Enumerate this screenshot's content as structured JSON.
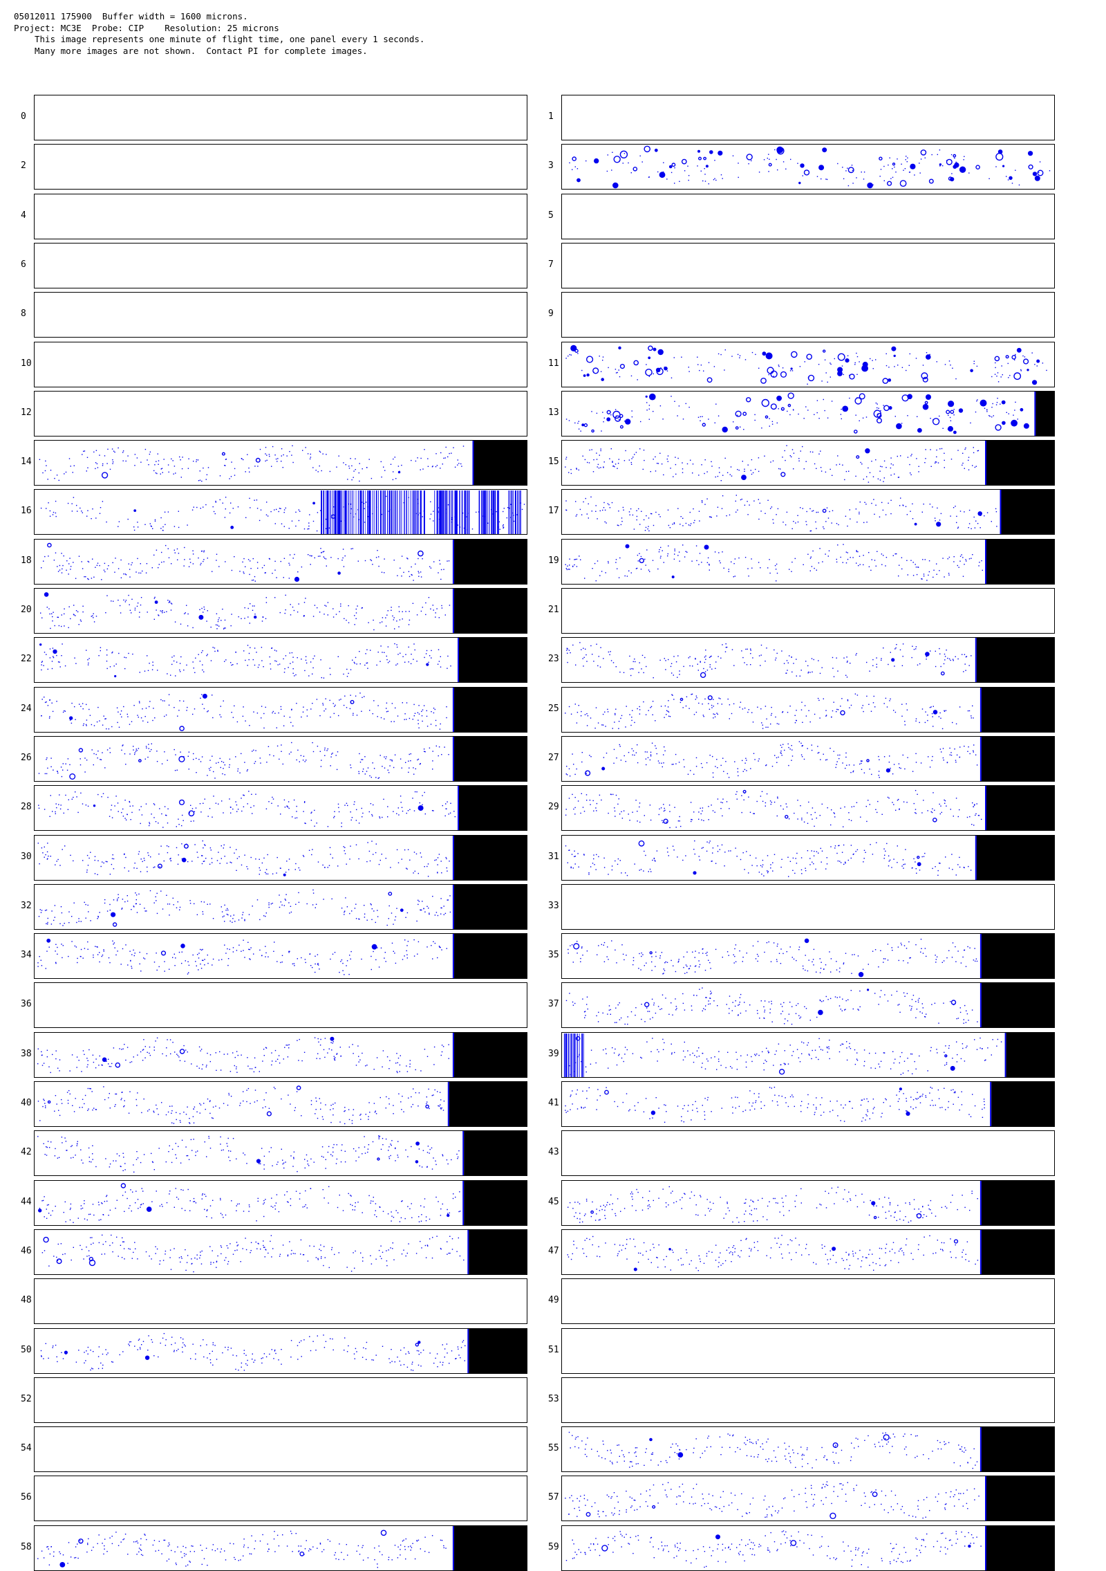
{
  "header": {
    "line1": "05012011 175900  Buffer width = 1600 microns.",
    "line2": "Project: MC3E  Probe: CIP    Resolution: 25 microns",
    "line3": "This image represents one minute of flight time, one panel every 1 seconds.",
    "line4": "Many more images are not shown.  Contact PI for complete images."
  },
  "colors": {
    "particle": "#0000ee",
    "fill": "#000000"
  },
  "panels": [
    {
      "n": "0",
      "fill": 0,
      "density": 0
    },
    {
      "n": "1",
      "fill": 0,
      "density": 0
    },
    {
      "n": "2",
      "fill": 0,
      "density": 0
    },
    {
      "n": "3",
      "fill": 0,
      "density": 0.6,
      "big": true
    },
    {
      "n": "4",
      "fill": 0,
      "density": 0
    },
    {
      "n": "5",
      "fill": 0,
      "density": 0
    },
    {
      "n": "6",
      "fill": 0,
      "density": 0
    },
    {
      "n": "7",
      "fill": 0,
      "density": 0
    },
    {
      "n": "8",
      "fill": 0,
      "density": 0
    },
    {
      "n": "9",
      "fill": 0,
      "density": 0
    },
    {
      "n": "10",
      "fill": 0,
      "density": 0
    },
    {
      "n": "11",
      "fill": 0,
      "density": 0.6,
      "big": true
    },
    {
      "n": "12",
      "fill": 0,
      "density": 0
    },
    {
      "n": "13",
      "fill": 0.04,
      "density": 0.6,
      "big": true
    },
    {
      "n": "14",
      "fill": 0.11,
      "density": 1
    },
    {
      "n": "15",
      "fill": 0.14,
      "density": 1
    },
    {
      "n": "16",
      "fill": 0,
      "density": 1,
      "bars": [
        [
          0.58,
          0.79
        ],
        [
          0.81,
          0.88
        ],
        [
          0.9,
          0.94
        ],
        [
          0.96,
          0.985
        ]
      ]
    },
    {
      "n": "17",
      "fill": 0.11,
      "density": 1
    },
    {
      "n": "18",
      "fill": 0.15,
      "density": 1
    },
    {
      "n": "19",
      "fill": 0.14,
      "density": 1
    },
    {
      "n": "20",
      "fill": 0.15,
      "density": 1
    },
    {
      "n": "21",
      "fill": 0,
      "density": 0
    },
    {
      "n": "22",
      "fill": 0.14,
      "density": 1
    },
    {
      "n": "23",
      "fill": 0.16,
      "density": 1
    },
    {
      "n": "24",
      "fill": 0.15,
      "density": 1
    },
    {
      "n": "25",
      "fill": 0.15,
      "density": 1
    },
    {
      "n": "26",
      "fill": 0.15,
      "density": 1
    },
    {
      "n": "27",
      "fill": 0.15,
      "density": 1
    },
    {
      "n": "28",
      "fill": 0.14,
      "density": 1
    },
    {
      "n": "29",
      "fill": 0.14,
      "density": 1
    },
    {
      "n": "30",
      "fill": 0.15,
      "density": 1
    },
    {
      "n": "31",
      "fill": 0.16,
      "density": 1
    },
    {
      "n": "32",
      "fill": 0.15,
      "density": 1
    },
    {
      "n": "33",
      "fill": 0,
      "density": 0
    },
    {
      "n": "34",
      "fill": 0.15,
      "density": 1
    },
    {
      "n": "35",
      "fill": 0.15,
      "density": 1
    },
    {
      "n": "36",
      "fill": 0,
      "density": 0
    },
    {
      "n": "37",
      "fill": 0.15,
      "density": 1
    },
    {
      "n": "38",
      "fill": 0.15,
      "density": 1
    },
    {
      "n": "39",
      "fill": 0.1,
      "density": 1,
      "bars": [
        [
          0.004,
          0.045
        ]
      ]
    },
    {
      "n": "40",
      "fill": 0.16,
      "density": 1
    },
    {
      "n": "41",
      "fill": 0.13,
      "density": 1
    },
    {
      "n": "42",
      "fill": 0.13,
      "density": 1
    },
    {
      "n": "43",
      "fill": 0,
      "density": 0
    },
    {
      "n": "44",
      "fill": 0.13,
      "density": 1
    },
    {
      "n": "45",
      "fill": 0.15,
      "density": 1
    },
    {
      "n": "46",
      "fill": 0.12,
      "density": 1
    },
    {
      "n": "47",
      "fill": 0.15,
      "density": 1
    },
    {
      "n": "48",
      "fill": 0,
      "density": 0
    },
    {
      "n": "49",
      "fill": 0,
      "density": 0
    },
    {
      "n": "50",
      "fill": 0.12,
      "density": 1
    },
    {
      "n": "51",
      "fill": 0,
      "density": 0
    },
    {
      "n": "52",
      "fill": 0,
      "density": 0
    },
    {
      "n": "53",
      "fill": 0,
      "density": 0
    },
    {
      "n": "54",
      "fill": 0,
      "density": 0
    },
    {
      "n": "55",
      "fill": 0.15,
      "density": 1
    },
    {
      "n": "56",
      "fill": 0,
      "density": 0
    },
    {
      "n": "57",
      "fill": 0.14,
      "density": 1
    },
    {
      "n": "58",
      "fill": 0.15,
      "density": 1
    },
    {
      "n": "59",
      "fill": 0.14,
      "density": 1
    }
  ]
}
